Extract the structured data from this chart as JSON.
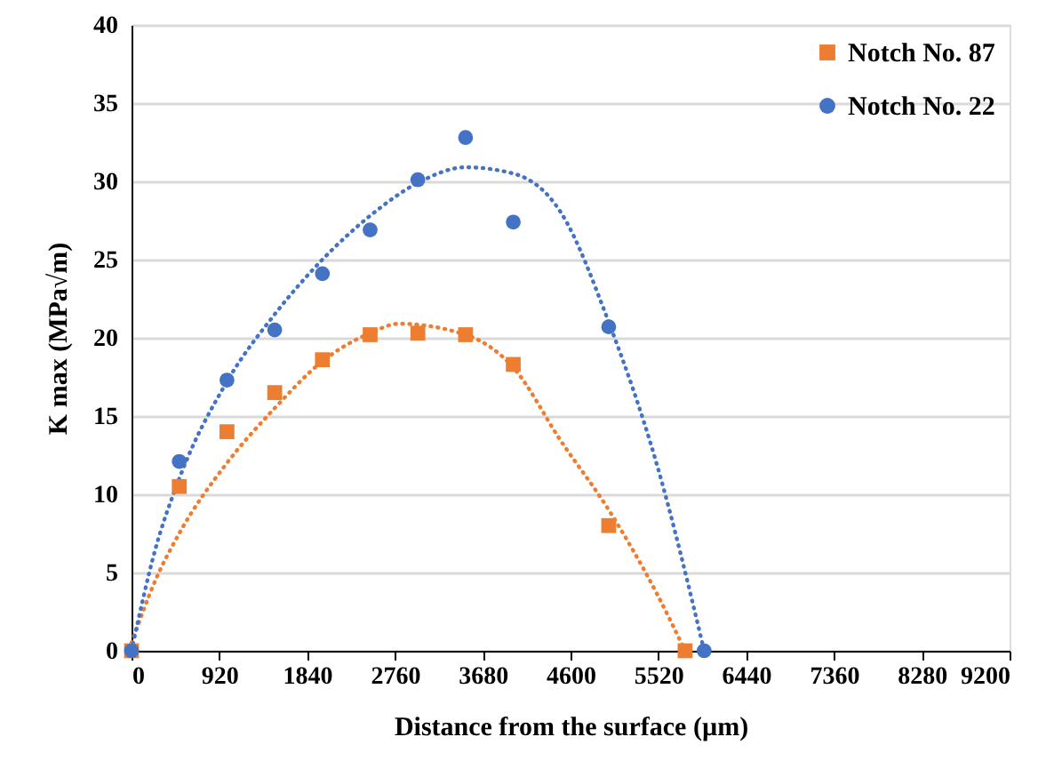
{
  "chart_data": {
    "type": "scatter",
    "xlabel": "Distance from the surface (µm)",
    "ylabel": "K max (MPa√m)",
    "xlim": [
      0,
      9200
    ],
    "ylim": [
      0,
      40
    ],
    "xticks": [
      0,
      920,
      1840,
      2760,
      3680,
      4600,
      5520,
      6440,
      7360,
      8280,
      9200
    ],
    "yticks": [
      0,
      5,
      10,
      15,
      20,
      25,
      30,
      35,
      40
    ],
    "grid": "y",
    "legend": "top right",
    "series": [
      {
        "name": "Notch No. 87",
        "marker": "square",
        "color": "#ed7d31",
        "x": [
          0,
          500,
          1000,
          1500,
          2000,
          2500,
          3000,
          3500,
          4000,
          5000,
          5800
        ],
        "values": [
          0,
          10.5,
          14.0,
          16.5,
          18.6,
          20.2,
          20.3,
          20.2,
          18.3,
          8.0,
          0
        ]
      },
      {
        "name": "Notch No. 22",
        "marker": "circle",
        "color": "#4472c4",
        "x": [
          0,
          500,
          1000,
          1500,
          2000,
          2500,
          3000,
          3500,
          4000,
          5000,
          6000
        ],
        "values": [
          0,
          12.1,
          17.3,
          20.5,
          24.1,
          26.9,
          30.1,
          32.8,
          27.4,
          20.7,
          0
        ]
      },
      {
        "type": "line",
        "line_style": "dotted",
        "color": "#ed7d31",
        "x": [
          0,
          250,
          500,
          1000,
          1500,
          2000,
          2500,
          2800,
          3500,
          4000,
          4500,
          5000,
          5500,
          5800
        ],
        "values": [
          0.5,
          4.5,
          7.5,
          12,
          15.5,
          18.5,
          20.3,
          20.9,
          20.2,
          18.1,
          13.4,
          9.0,
          3.7,
          0
        ]
      },
      {
        "type": "line",
        "line_style": "dotted",
        "color": "#4472c4",
        "x": [
          0,
          250,
          500,
          1000,
          1500,
          2000,
          2500,
          3000,
          3500,
          4000,
          4500,
          5000,
          5500,
          6000
        ],
        "values": [
          0,
          6.5,
          11,
          17.2,
          21.5,
          25,
          27.8,
          29.9,
          30.9,
          30.5,
          28,
          21,
          12,
          0
        ]
      }
    ]
  }
}
